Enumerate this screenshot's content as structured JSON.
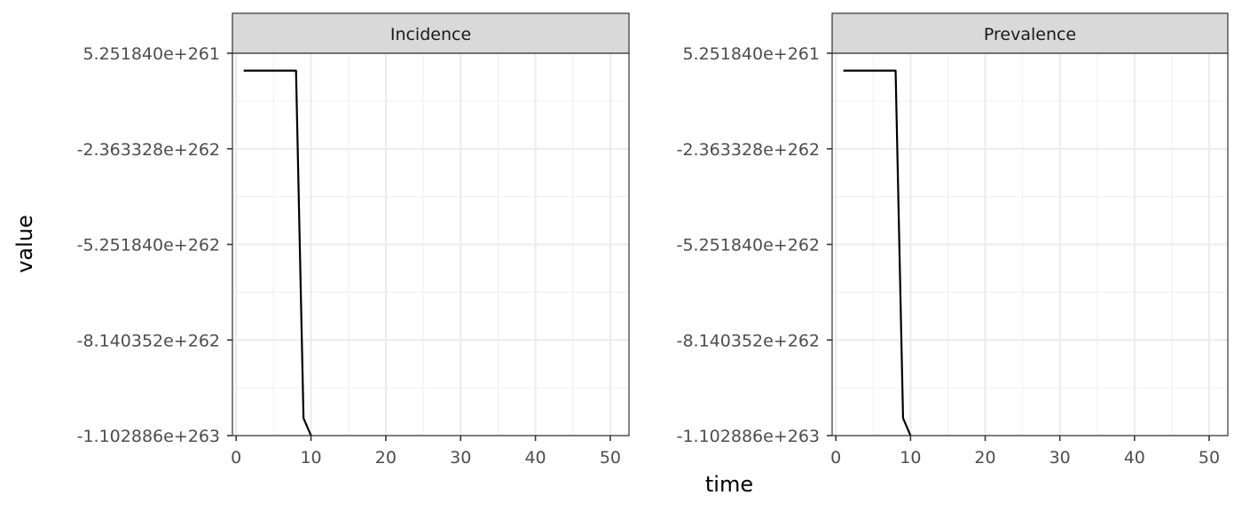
{
  "chart_data": {
    "type": "line",
    "facet_layout": "1 row, 2 columns",
    "theme": "black-and-white with light gray grid, gray facet strips",
    "xlabel": "time",
    "ylabel": "value",
    "xlim": [
      -0.5,
      52.5
    ],
    "ylim": [
      -1.102886e+263,
      5.25184e+261
    ],
    "x_ticks": [
      0,
      10,
      20,
      30,
      40,
      50
    ],
    "x_tick_labels": [
      "0",
      "10",
      "20",
      "30",
      "40",
      "50"
    ],
    "y_ticks": [
      5.25184e+261,
      -2.363328e+262,
      -5.25184e+262,
      -8.140352e+262,
      -1.102886e+263
    ],
    "y_tick_labels": [
      "5.251840e+261",
      "-2.363328e+262",
      "-5.251840e+262",
      "-8.140352e+262",
      "-1.102886e+263"
    ],
    "line_color": "#000000",
    "grid": true,
    "legend": "none",
    "panels": [
      {
        "strip_label": "Incidence",
        "series": [
          {
            "x": [
              1,
              2,
              3,
              4,
              5,
              6,
              7,
              8,
              9,
              10
            ],
            "y": [
              0,
              0,
              0,
              0,
              0,
              0,
              0,
              0,
              -1.05e+263,
              -1.102886e+263
            ]
          }
        ]
      },
      {
        "strip_label": "Prevalence",
        "series": [
          {
            "x": [
              1,
              2,
              3,
              4,
              5,
              6,
              7,
              8,
              9,
              10
            ],
            "y": [
              0,
              0,
              0,
              0,
              0,
              0,
              0,
              0,
              -1.05e+263,
              -1.102886e+263
            ]
          }
        ]
      }
    ]
  }
}
